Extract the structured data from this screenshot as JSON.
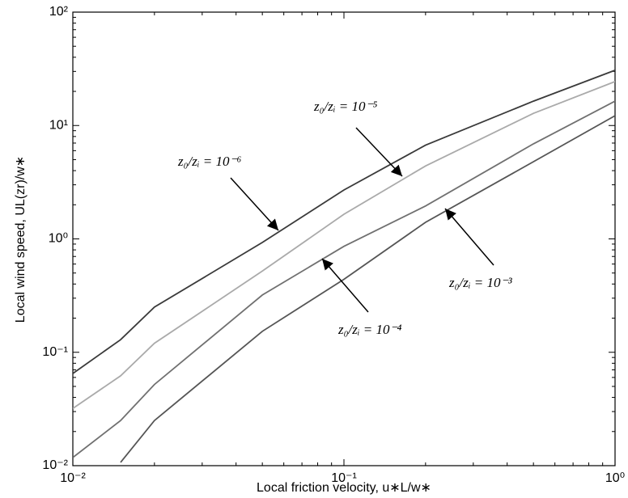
{
  "chart_data": {
    "type": "line",
    "x_label": "Local friction velocity, u∗L/w∗",
    "y_label": "Local wind speed, UL(zr)/w∗",
    "x": [
      0.01,
      0.015,
      0.02,
      0.05,
      0.1,
      0.2,
      0.5,
      1
    ],
    "series": [
      {
        "name": "z₀/zᵢ = 10⁻⁶",
        "color": "#3a3a3a",
        "values": [
          0.065,
          0.129,
          0.25,
          0.93,
          2.7,
          6.7,
          16.4,
          30.7
        ]
      },
      {
        "name": "z₀/zᵢ = 10⁻⁵",
        "color": "#aaaaaa",
        "values": [
          0.032,
          0.062,
          0.12,
          0.52,
          1.65,
          4.4,
          12.8,
          24.4
        ]
      },
      {
        "name": "z₀/zᵢ = 10⁻⁴",
        "color": "#707070",
        "values": [
          0.0118,
          0.025,
          0.052,
          0.32,
          0.86,
          1.95,
          6.9,
          16.4
        ]
      },
      {
        "name": "z₀/zᵢ = 10⁻³",
        "color": "#555555",
        "values": [
          null,
          0.0107,
          0.025,
          0.153,
          0.44,
          1.4,
          4.8,
          12.2
        ]
      }
    ],
    "xlog": true,
    "ylog": true,
    "xlim": [
      0.01,
      1
    ],
    "ylim": [
      0.01,
      100
    ],
    "xticks": [
      {
        "value": 0.01,
        "label": "10⁻²"
      },
      {
        "value": 0.1,
        "label": "10⁻¹"
      },
      {
        "value": 1,
        "label": "10⁰"
      }
    ],
    "yticks": [
      {
        "value": 0.01,
        "label": "10⁻²"
      },
      {
        "value": 0.1,
        "label": "10⁻¹"
      },
      {
        "value": 1,
        "label": "10⁰"
      },
      {
        "value": 10,
        "label": "10¹"
      },
      {
        "value": 100,
        "label": "10²"
      }
    ],
    "grid": false
  }
}
